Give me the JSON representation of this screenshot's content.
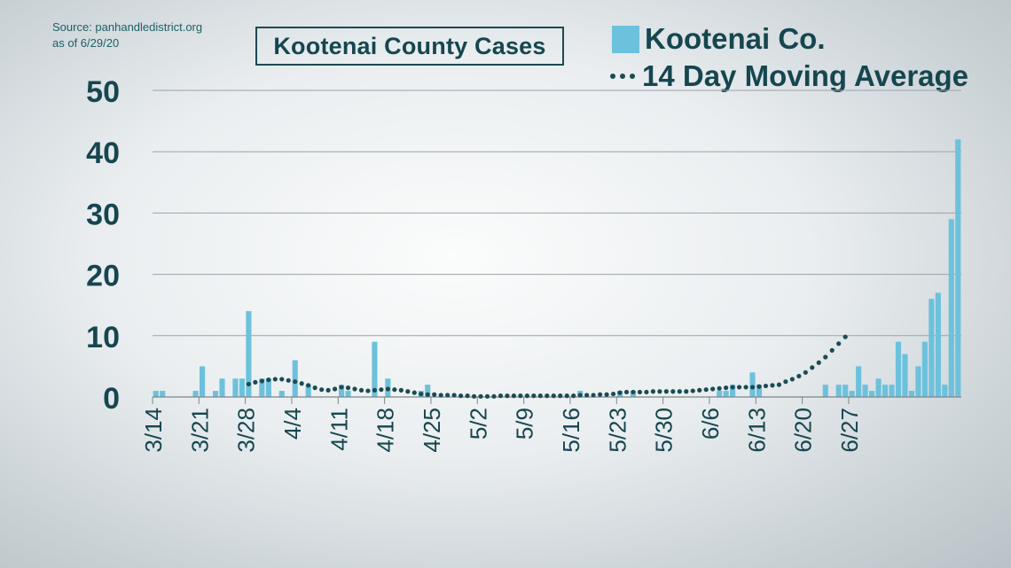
{
  "source": {
    "line1": "Source: panhandledistrict.org",
    "line2": "as of 6/29/20"
  },
  "title": "Kootenai County Cases",
  "legend": {
    "bars_label": "Kootenai Co.",
    "average_label": "14 Day Moving Average"
  },
  "colors": {
    "bar": "#6cc1dc",
    "average": "#1b4b53",
    "text": "#16464f",
    "grid": "#9aa3a8"
  },
  "chart_data": {
    "type": "bar",
    "title": "Kootenai County Cases",
    "xlabel": "",
    "ylabel": "",
    "ylim": [
      0,
      50
    ],
    "yticks": [
      0,
      10,
      20,
      30,
      40,
      50
    ],
    "grid": true,
    "legend_position": "top-right",
    "start_date": "3/14",
    "x_tick_labels": [
      "3/14",
      "3/21",
      "3/28",
      "4/4",
      "4/11",
      "4/18",
      "4/25",
      "5/2",
      "5/9",
      "5/16",
      "5/23",
      "5/30",
      "6/6",
      "6/13",
      "6/20",
      "6/27"
    ],
    "series": [
      {
        "name": "Kootenai Co.",
        "type": "bar",
        "values": [
          1,
          1,
          0,
          0,
          0,
          0,
          1,
          5,
          0,
          1,
          3,
          0,
          3,
          3,
          14,
          0,
          3,
          3,
          0,
          1,
          0,
          6,
          0,
          2,
          0,
          0,
          0,
          0,
          2,
          1,
          0,
          0,
          0,
          9,
          0,
          3,
          0,
          0,
          0,
          0,
          1,
          2,
          0,
          0,
          0,
          0,
          0,
          0,
          0,
          0,
          0,
          0,
          0,
          0,
          0,
          0,
          0,
          0,
          0,
          0,
          0,
          0,
          0,
          0,
          1,
          0,
          0,
          0,
          0,
          0,
          1,
          0,
          1,
          0,
          0,
          0,
          0,
          0,
          0,
          0,
          0,
          0,
          0,
          0,
          0,
          1,
          1,
          2,
          0,
          0,
          4,
          2,
          0,
          0,
          0,
          0,
          0,
          0,
          0,
          0,
          0,
          2,
          0,
          2,
          2,
          1,
          5,
          2,
          1,
          3,
          2,
          2,
          9,
          7,
          1,
          5,
          9,
          16,
          17,
          2,
          29,
          42
        ]
      },
      {
        "name": "14 Day Moving Average",
        "type": "line",
        "start_index": 14,
        "values": [
          2.1,
          2.4,
          2.6,
          2.8,
          2.9,
          2.9,
          2.7,
          2.5,
          2.2,
          1.9,
          1.5,
          1.2,
          1.1,
          1.3,
          1.6,
          1.5,
          1.3,
          1.1,
          1.0,
          1.1,
          1.2,
          1.3,
          1.2,
          1.1,
          0.9,
          0.7,
          0.5,
          0.4,
          0.4,
          0.3,
          0.3,
          0.3,
          0.2,
          0.2,
          0.1,
          0.1,
          0.1,
          0.1,
          0.2,
          0.2,
          0.2,
          0.2,
          0.2,
          0.2,
          0.2,
          0.2,
          0.2,
          0.2,
          0.2,
          0.2,
          0.3,
          0.3,
          0.3,
          0.4,
          0.4,
          0.5,
          0.7,
          0.8,
          0.8,
          0.8,
          0.8,
          0.9,
          0.9,
          0.9,
          0.9,
          0.9,
          0.9,
          1.0,
          1.1,
          1.2,
          1.3,
          1.4,
          1.5,
          1.6,
          1.6,
          1.6,
          1.6,
          1.7,
          1.8,
          1.9,
          2.0,
          2.5,
          2.9,
          3.4,
          4.0,
          4.8,
          5.6,
          6.5,
          7.6,
          8.7,
          9.8
        ]
      }
    ]
  }
}
